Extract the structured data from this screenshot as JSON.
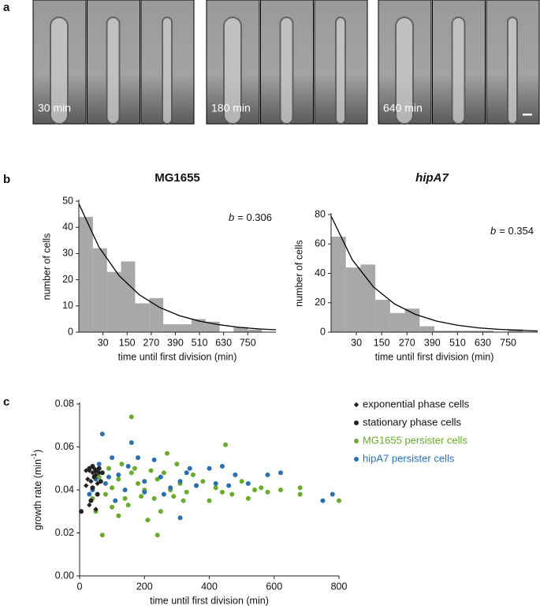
{
  "panel_labels": [
    "a",
    "b",
    "c"
  ],
  "images": [
    {
      "label": "30 min"
    },
    {
      "label": "180 min"
    },
    {
      "label": "640 min"
    }
  ],
  "chart_data": [
    {
      "type": "histogram",
      "title": "MG1655",
      "title_italic": false,
      "annotation": [
        "b",
        "= 0.306"
      ],
      "x_label": "time until first division (min)",
      "y_label": "number of cells",
      "bins": [
        -90,
        -20,
        50,
        120,
        190,
        260,
        330,
        400,
        470,
        540,
        610,
        680,
        750,
        820,
        890
      ],
      "values": [
        44,
        32,
        23,
        27,
        11,
        13,
        3,
        3,
        5,
        4,
        0,
        2,
        1,
        0
      ],
      "color": "#a8a8aa",
      "fit": {
        "color": "#000000",
        "x": [
          -90,
          10,
          110,
          210,
          310,
          410,
          510,
          610,
          710,
          810,
          890
        ],
        "values": [
          49,
          32.5,
          21.6,
          14.3,
          9.5,
          6.3,
          4.2,
          2.8,
          1.8,
          1.2,
          0.9
        ]
      },
      "xlim": [
        -90,
        890
      ],
      "xticks": [
        30,
        150,
        270,
        390,
        510,
        630,
        750
      ],
      "ylim": [
        0,
        50
      ],
      "yticks": [
        0,
        10,
        20,
        30,
        40,
        50
      ]
    },
    {
      "type": "histogram",
      "title": "hipA7",
      "title_italic": true,
      "annotation": [
        "b",
        "= 0.354"
      ],
      "x_label": "time until first division (min)",
      "y_label": "number of cells",
      "bins": [
        -90,
        -20,
        50,
        120,
        190,
        260,
        330,
        400,
        470,
        540,
        610,
        680,
        750,
        820,
        890
      ],
      "values": [
        65,
        44,
        46,
        22,
        13,
        16,
        4,
        1,
        1,
        1,
        1,
        0,
        2,
        0
      ],
      "color": "#a8a8aa",
      "fit": {
        "color": "#000000",
        "x": [
          -90,
          10,
          110,
          210,
          310,
          410,
          510,
          610,
          710,
          810,
          890
        ],
        "values": [
          79,
          49.4,
          30.9,
          19.3,
          12.1,
          7.5,
          4.7,
          2.9,
          1.9,
          1.2,
          0.8
        ]
      },
      "xlim": [
        -90,
        890
      ],
      "xticks": [
        30,
        150,
        270,
        390,
        510,
        630,
        750
      ],
      "ylim": [
        0,
        80
      ],
      "yticks": [
        0,
        20,
        40,
        60,
        80
      ]
    },
    {
      "type": "scatter",
      "x_label": "time until first division (min)",
      "y_label": [
        "growth rate (min",
        "-1",
        ")"
      ],
      "xlim": [
        0,
        800
      ],
      "xticks": [
        0,
        200,
        400,
        600,
        800
      ],
      "ylim": [
        0,
        0.08
      ],
      "yticks": [
        {
          "value": 0,
          "label": "0.00"
        },
        0.02,
        0.04,
        0.06,
        0.08
      ],
      "series": [
        {
          "name": "exponential phase cells",
          "color": "#222222",
          "marker": "diamond",
          "x": [
            20,
            30,
            40,
            50,
            25,
            35,
            45,
            55,
            30,
            50,
            20,
            60
          ],
          "values": [
            0.049,
            0.049,
            0.048,
            0.047,
            0.045,
            0.044,
            0.05,
            0.043,
            0.033,
            0.031,
            0.042,
            0.048
          ]
        },
        {
          "name": "stationary phase cells",
          "color": "#222222",
          "marker": "circle",
          "x": [
            5,
            30,
            40,
            50,
            60,
            70,
            45,
            55,
            35,
            65,
            40
          ],
          "values": [
            0.03,
            0.05,
            0.051,
            0.049,
            0.05,
            0.048,
            0.046,
            0.038,
            0.035,
            0.044,
            0.041
          ]
        },
        {
          "name": "MG1655 persister cells",
          "color": "#6aab2e",
          "marker": "circle",
          "x": [
            160,
            270,
            450,
            70,
            240,
            210,
            120,
            100,
            800,
            680,
            680,
            620,
            580,
            560,
            540,
            520,
            500,
            470,
            440,
            420,
            400,
            380,
            350,
            330,
            310,
            290,
            260,
            240,
            220,
            200,
            180,
            160,
            140,
            120,
            100,
            90,
            80,
            60,
            50,
            40,
            150,
            190,
            230,
            280,
            320,
            360,
            250,
            130,
            170,
            300
          ],
          "values": [
            0.074,
            0.057,
            0.061,
            0.019,
            0.019,
            0.026,
            0.028,
            0.032,
            0.035,
            0.041,
            0.038,
            0.04,
            0.039,
            0.041,
            0.04,
            0.036,
            0.044,
            0.038,
            0.039,
            0.041,
            0.035,
            0.044,
            0.047,
            0.039,
            0.043,
            0.037,
            0.048,
            0.045,
            0.049,
            0.04,
            0.043,
            0.048,
            0.036,
            0.045,
            0.041,
            0.05,
            0.038,
            0.046,
            0.03,
            0.036,
            0.033,
            0.037,
            0.036,
            0.04,
            0.035,
            0.042,
            0.03,
            0.052,
            0.05,
            0.052
          ]
        },
        {
          "name": "hipA7 persister cells",
          "color": "#2a6fb0",
          "marker": "circle",
          "x": [
            70,
            160,
            440,
            400,
            780,
            750,
            620,
            580,
            480,
            520,
            460,
            420,
            360,
            330,
            310,
            280,
            250,
            230,
            200,
            180,
            150,
            120,
            100,
            80,
            60,
            50,
            40,
            30,
            310,
            200,
            140,
            110,
            90,
            260,
            340
          ],
          "values": [
            0.066,
            0.062,
            0.051,
            0.05,
            0.038,
            0.035,
            0.048,
            0.047,
            0.047,
            0.043,
            0.042,
            0.043,
            0.042,
            0.048,
            0.044,
            0.041,
            0.046,
            0.054,
            0.044,
            0.055,
            0.051,
            0.047,
            0.055,
            0.043,
            0.052,
            0.045,
            0.04,
            0.038,
            0.027,
            0.039,
            0.04,
            0.035,
            0.046,
            0.038,
            0.05
          ]
        }
      ]
    }
  ]
}
